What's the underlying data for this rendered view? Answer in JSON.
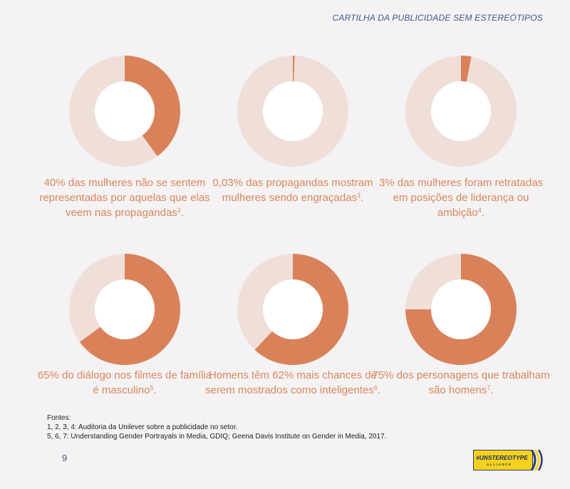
{
  "header": {
    "title": "CARTILHA DA PUBLICIDADE SEM ESTEREÓTIPOS"
  },
  "colors": {
    "accent": "#d9825a",
    "track": "#f0dfd9",
    "text_accent": "#d9875e",
    "header": "#3c5a8c"
  },
  "chart_data": [
    {
      "type": "pie",
      "values": [
        40,
        60
      ],
      "highlight_percent": 40,
      "caption_text": "40% das mulheres não se sentem representadas por aquelas que elas veem nas propagandas",
      "caption_note": "2",
      "caption_end": "."
    },
    {
      "type": "pie",
      "values": [
        0.03,
        99.97
      ],
      "highlight_percent": 0.03,
      "caption_text": "0,03% das propagandas mostram mulheres sendo engraçadas",
      "caption_note": "3",
      "caption_end": "."
    },
    {
      "type": "pie",
      "values": [
        3,
        97
      ],
      "highlight_percent": 3,
      "caption_text": "3% das mulheres foram retratadas em posições de liderança ou ambição",
      "caption_note": "4",
      "caption_end": "."
    },
    {
      "type": "pie",
      "values": [
        65,
        35
      ],
      "highlight_percent": 65,
      "caption_text": "65% do diálogo nos filmes de família é masculino",
      "caption_note": "5",
      "caption_end": "."
    },
    {
      "type": "pie",
      "values": [
        62,
        38
      ],
      "highlight_percent": 62,
      "caption_text": "Homens têm 62% mais chances de serem mostrados como inteligentes",
      "caption_note": "6",
      "caption_end": "."
    },
    {
      "type": "pie",
      "values": [
        75,
        25
      ],
      "highlight_percent": 75,
      "caption_text": "75% dos personagens que trabalham são homens",
      "caption_note": "7",
      "caption_end": "."
    }
  ],
  "sources": {
    "heading": "Fontes:",
    "line1": "1, 2, 3, 4: Auditoria da Unilever sobre a publicidade no setor.",
    "line2": "5, 6, 7: Understanding Gender Portrayals in Media, GDIQ; Geena Davis Institute on Gender in Media, 2017."
  },
  "footer": {
    "page_number": "9",
    "logo_text": "#UNSTEREOTYPE",
    "logo_sub": "ALLIANCE"
  }
}
